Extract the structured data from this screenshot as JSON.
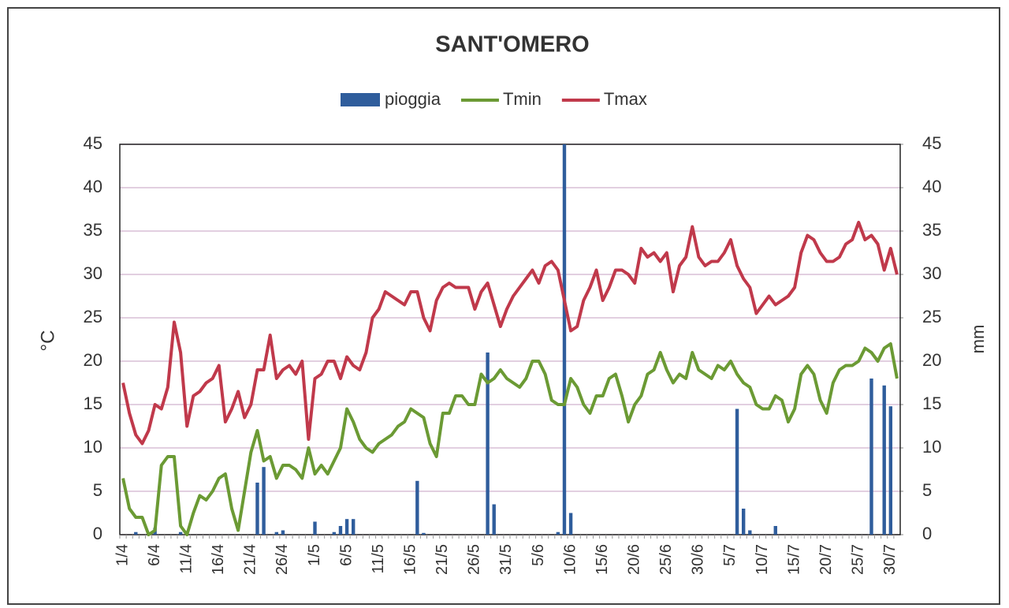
{
  "chart_data": {
    "type": "combo",
    "title": "SANT'OMERO",
    "categories": [
      "1/4",
      null,
      null,
      null,
      null,
      "6/4",
      null,
      null,
      null,
      null,
      "11/4",
      null,
      null,
      null,
      null,
      "16/4",
      null,
      null,
      null,
      null,
      "21/4",
      null,
      null,
      null,
      null,
      "26/4",
      null,
      null,
      null,
      null,
      "1/5",
      null,
      null,
      null,
      null,
      "6/5",
      null,
      null,
      null,
      null,
      "11/5",
      null,
      null,
      null,
      null,
      "16/5",
      null,
      null,
      null,
      null,
      "21/5",
      null,
      null,
      null,
      null,
      "26/5",
      null,
      null,
      null,
      null,
      "31/5",
      null,
      null,
      null,
      null,
      "5/6",
      null,
      null,
      null,
      null,
      "10/6",
      null,
      null,
      null,
      null,
      "15/6",
      null,
      null,
      null,
      null,
      "20/6",
      null,
      null,
      null,
      null,
      "25/6",
      null,
      null,
      null,
      null,
      "30/6",
      null,
      null,
      null,
      null,
      "5/7",
      null,
      null,
      null,
      null,
      "10/7",
      null,
      null,
      null,
      null,
      "15/7",
      null,
      null,
      null,
      null,
      "20/7",
      null,
      null,
      null,
      null,
      "25/7",
      null,
      null,
      null,
      null,
      "30/7",
      null
    ],
    "series": [
      {
        "name": "pioggia",
        "type": "bar",
        "axis": "y2",
        "color": "#2f5d9c",
        "values": [
          0,
          0,
          0.3,
          0,
          0,
          0.8,
          0,
          0,
          0,
          0.3,
          0,
          0,
          0,
          0,
          0,
          0,
          0,
          0,
          0,
          0,
          0,
          6,
          7.8,
          0,
          0.3,
          0.5,
          0,
          0,
          0,
          0,
          1.5,
          0,
          0,
          0.3,
          1,
          1.8,
          1.8,
          0,
          0,
          0,
          0,
          0,
          0,
          0,
          0,
          0,
          6.2,
          0.2,
          0,
          0,
          0,
          0,
          0,
          0,
          0,
          0,
          0,
          21,
          3.5,
          0,
          0,
          0,
          0,
          0,
          0,
          0,
          0,
          0,
          0.3,
          45,
          2.5,
          0,
          0,
          0,
          0,
          0,
          0,
          0,
          0,
          0,
          0,
          0,
          0,
          0,
          0,
          0,
          0,
          0,
          0,
          0,
          0,
          0,
          0,
          0,
          0,
          0,
          14.5,
          3,
          0.5,
          0,
          0,
          0,
          1,
          0,
          0,
          0,
          0,
          0,
          0,
          0,
          0,
          0,
          0,
          0,
          0,
          0,
          0,
          18,
          0,
          17.2,
          14.8,
          0
        ]
      },
      {
        "name": "Tmin",
        "type": "line",
        "color": "#6b9a34",
        "values": [
          6.5,
          3,
          2,
          2,
          0,
          0.5,
          8,
          9,
          9,
          1,
          0,
          2.5,
          4.5,
          4,
          5,
          6.5,
          7,
          3,
          0.5,
          5,
          9.5,
          12,
          8.5,
          9,
          6.5,
          8,
          8,
          7.5,
          6.5,
          10,
          7,
          8,
          7,
          8.5,
          10,
          14.5,
          13,
          11,
          10,
          9.5,
          10.5,
          11,
          11.5,
          12.5,
          13,
          14.5,
          14,
          13.5,
          10.5,
          9,
          14,
          14,
          16,
          16,
          15,
          15,
          18.5,
          17.5,
          18,
          19,
          18,
          17.5,
          17,
          18,
          20,
          20,
          18.5,
          15.5,
          15,
          15,
          18,
          17,
          15,
          14,
          16,
          16,
          18,
          18.5,
          16,
          13,
          15,
          16,
          18.5,
          19,
          21,
          19,
          17.5,
          18.5,
          18,
          21,
          19,
          18.5,
          18,
          19.5,
          19,
          20,
          18.5,
          17.5,
          17,
          15,
          14.5,
          14.5,
          16,
          15.5,
          13,
          14.5,
          18.5,
          19.5,
          18.5,
          15.5,
          14,
          17.5,
          19,
          19.5,
          19.5,
          20,
          21.5,
          21,
          20,
          21.5,
          22,
          18
        ]
      },
      {
        "name": "Tmax",
        "type": "line",
        "color": "#c0394b",
        "values": [
          17.5,
          14,
          11.5,
          10.5,
          12,
          15,
          14.5,
          17,
          24.5,
          21,
          12.5,
          16,
          16.5,
          17.5,
          18,
          19.5,
          13,
          14.5,
          16.5,
          13.5,
          15,
          19,
          19,
          23,
          18,
          19,
          19.5,
          18.5,
          20,
          11,
          18,
          18.5,
          20,
          20,
          18,
          20.5,
          19.5,
          19,
          21,
          25,
          26,
          28,
          27.5,
          27,
          26.5,
          28,
          28,
          25,
          23.5,
          27,
          28.5,
          29,
          28.5,
          28.5,
          28.5,
          26,
          28,
          29,
          26.5,
          24,
          26,
          27.5,
          28.5,
          29.5,
          30.5,
          29,
          31,
          31.5,
          30.5,
          27,
          23.5,
          24,
          27,
          28.5,
          30.5,
          27,
          28.5,
          30.5,
          30.5,
          30,
          29,
          33,
          32,
          32.5,
          31.5,
          32.5,
          28,
          31,
          32,
          35.5,
          32,
          31,
          31.5,
          31.5,
          32.5,
          34,
          31,
          29.5,
          28.5,
          25.5,
          26.5,
          27.5,
          26.5,
          27,
          27.5,
          28.5,
          32.5,
          34.5,
          34,
          32.5,
          31.5,
          31.5,
          32,
          33.5,
          34,
          36,
          34,
          34.5,
          33.5,
          30.5,
          33,
          30
        ]
      }
    ],
    "ylabel": "°C",
    "y2label": "mm",
    "ylim": [
      0,
      45
    ],
    "yticks": [
      0,
      5,
      10,
      15,
      20,
      25,
      30,
      35,
      40,
      45
    ],
    "y2lim": [
      0,
      45
    ],
    "y2ticks": [
      0,
      5,
      10,
      15,
      20,
      25,
      30,
      35,
      40,
      45
    ],
    "grid": true
  }
}
